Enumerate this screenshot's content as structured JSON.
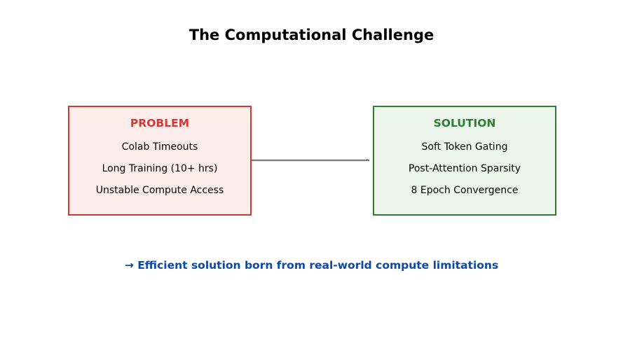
{
  "title": "The Computational Challenge",
  "problem": {
    "heading": "PROBLEM",
    "items": [
      "Colab Timeouts",
      "Long Training (10+ hrs)",
      "Unstable Compute Access"
    ]
  },
  "solution": {
    "heading": "SOLUTION",
    "items": [
      "Soft Token Gating",
      "Post-Attention Sparsity",
      "8 Epoch Convergence"
    ]
  },
  "footer": "→ Efficient solution born from real-world compute limitations",
  "colors": {
    "problem": "#d03a36",
    "problem_fill": "#fdeeec",
    "solution": "#2e7d32",
    "solution_fill": "#ecf6ec",
    "connector": "#808080",
    "footer": "#0b4aa6"
  }
}
